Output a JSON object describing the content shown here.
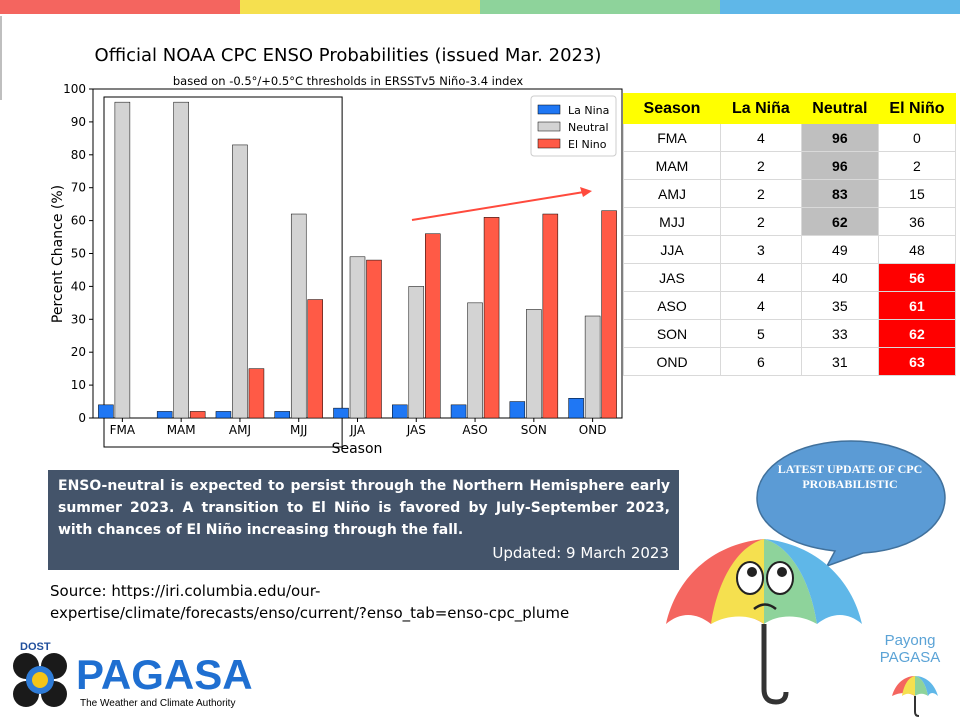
{
  "top_bar_colors": [
    "#f4655f",
    "#f5e04f",
    "#8ed39b",
    "#5fb7e8"
  ],
  "chart_data": {
    "type": "bar",
    "title": "Official NOAA CPC ENSO Probabilities (issued Mar. 2023)",
    "subtitle": "based on -0.5°/+0.5°C thresholds in ERSSTv5 Niño-3.4 index",
    "xlabel": "Season",
    "ylabel": "Percent Chance (%)",
    "ylim": [
      0,
      100
    ],
    "yticks": [
      0,
      10,
      20,
      30,
      40,
      50,
      60,
      70,
      80,
      90,
      100
    ],
    "categories": [
      "FMA",
      "MAM",
      "AMJ",
      "MJJ",
      "JJA",
      "JAS",
      "ASO",
      "SON",
      "OND"
    ],
    "series": [
      {
        "name": "La Nina",
        "color": "#1f77f4",
        "values": [
          4,
          2,
          2,
          2,
          3,
          4,
          4,
          5,
          6
        ]
      },
      {
        "name": "Neutral",
        "color": "#d3d3d3",
        "values": [
          96,
          96,
          83,
          62,
          49,
          40,
          35,
          33,
          31
        ]
      },
      {
        "name": "El Nino",
        "color": "#ff5a46",
        "values": [
          0,
          2,
          15,
          36,
          48,
          56,
          61,
          62,
          63
        ]
      }
    ],
    "legend_position": "top-right",
    "grid": false
  },
  "table": {
    "headers": [
      "Season",
      "La Niña",
      "Neutral",
      "El Niño"
    ],
    "rows": [
      [
        "FMA",
        "4",
        "96",
        "0"
      ],
      [
        "MAM",
        "2",
        "96",
        "2"
      ],
      [
        "AMJ",
        "2",
        "83",
        "15"
      ],
      [
        "MJJ",
        "2",
        "62",
        "36"
      ],
      [
        "JJA",
        "3",
        "49",
        "48"
      ],
      [
        "JAS",
        "4",
        "40",
        "56"
      ],
      [
        "ASO",
        "4",
        "35",
        "61"
      ],
      [
        "SON",
        "5",
        "33",
        "62"
      ],
      [
        "OND",
        "6",
        "31",
        "63"
      ]
    ],
    "highlight_gray_color": "#bfbfbf",
    "highlight_red_color": "#ff0000"
  },
  "message": {
    "text": "ENSO-neutral is expected to persist through the Northern Hemisphere early summer 2023.  A transition to El Niño is favored by July-September 2023, with chances of El Niño increasing through the fall.",
    "updated": "Updated:  9 March 2023"
  },
  "source": "Source: https://iri.columbia.edu/our-expertise/climate/forecasts/enso/current/?enso_tab=enso-cpc_plume",
  "bubble": {
    "text": "LATEST UPDATE OF CPC PROBABILISTIC",
    "color": "#5b9bd5"
  },
  "logo": {
    "dost": "DOST",
    "name": "PAGASA",
    "tagline": "The Weather and Climate Authority"
  },
  "mascot": {
    "label": "Payong PAGASA"
  }
}
